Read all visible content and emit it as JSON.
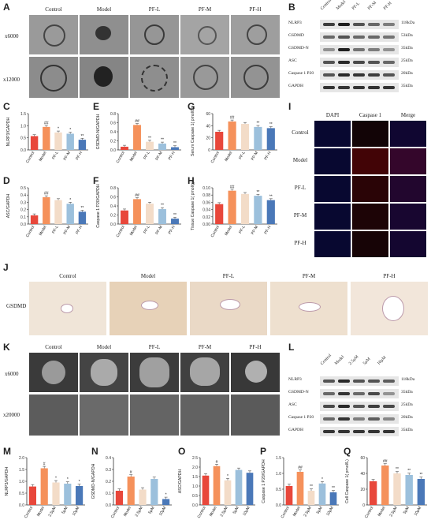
{
  "panels": {
    "A": "A",
    "B": "B",
    "C": "C",
    "D": "D",
    "E": "E",
    "F": "F",
    "G": "G",
    "H": "H",
    "I": "I",
    "J": "J",
    "K": "K",
    "L": "L",
    "M": "M",
    "N": "N",
    "O": "O",
    "P": "P",
    "Q": "Q"
  },
  "groups": [
    "Control",
    "Model",
    "PF-L",
    "PF-M",
    "PF-H"
  ],
  "cell_groups": [
    "Control",
    "Model",
    "2.5μM",
    "5μM",
    "10μM"
  ],
  "tem": {
    "mag1": "x6000",
    "mag2": "x12000"
  },
  "sem": {
    "mag1": "x6000",
    "mag2": "x20000"
  },
  "blot_b": {
    "rows": [
      {
        "name": "NLRP3",
        "kda": "118kDa"
      },
      {
        "name": "GSDMD",
        "kda": "53kDa"
      },
      {
        "name": "GSDMD-N",
        "kda": "35kDa"
      },
      {
        "name": "ASC",
        "kda": "25kDa"
      },
      {
        "name": "Caspase 1 P20",
        "kda": "20kDa"
      },
      {
        "name": "GAPDH",
        "kda": "35kDa"
      }
    ]
  },
  "blot_l": {
    "rows": [
      {
        "name": "NLRP3",
        "kda": "118kDa"
      },
      {
        "name": "GSDMD-N",
        "kda": "35kDa"
      },
      {
        "name": "ASC",
        "kda": "25kDa"
      },
      {
        "name": "Caspase 1 P20",
        "kda": "20kDa"
      },
      {
        "name": "GAPDH",
        "kda": "35kDa"
      }
    ]
  },
  "if_panel": {
    "cols": [
      "DAPI",
      "Caspase 1",
      "Merge"
    ],
    "rows": [
      "Control",
      "Model",
      "PF-L",
      "PF-M",
      "PF-H"
    ]
  },
  "ihc": {
    "row_label": "GSDMD"
  },
  "colors": {
    "c0": "#e8473b",
    "c1": "#f5915b",
    "c2": "#f3dcc8",
    "c3": "#9cc0dc",
    "c4": "#4a78b8"
  },
  "chart_data": [
    {
      "id": "C",
      "type": "bar",
      "ylabel": "NLRP3/GAPDH",
      "categories": [
        "Control",
        "Model",
        "PF-L",
        "PF-M",
        "PF-H"
      ],
      "values": [
        0.57,
        0.95,
        0.72,
        0.67,
        0.42
      ],
      "ylim": [
        0,
        1.5
      ],
      "ticks": [
        "0.0",
        "0.5",
        "1.0",
        "1.5"
      ],
      "sig": [
        "",
        "##",
        "*",
        "*",
        "**"
      ]
    },
    {
      "id": "D",
      "type": "bar",
      "ylabel": "ASC/GAPDH",
      "categories": [
        "Control",
        "Model",
        "PF-L",
        "PF-M",
        "PF-H"
      ],
      "values": [
        0.12,
        0.37,
        0.33,
        0.28,
        0.17
      ],
      "ylim": [
        0,
        0.5
      ],
      "ticks": [
        "0.0",
        "0.1",
        "0.2",
        "0.3",
        "0.4",
        "0.5"
      ],
      "sig": [
        "",
        "##",
        "",
        "*",
        "**"
      ]
    },
    {
      "id": "E",
      "type": "bar",
      "ylabel": "GSDMD-N/GAPDH",
      "categories": [
        "Control",
        "Model",
        "PF-L",
        "PF-M",
        "PF-H"
      ],
      "values": [
        0.07,
        0.55,
        0.18,
        0.14,
        0.06
      ],
      "ylim": [
        0,
        0.8
      ],
      "ticks": [
        "0.0",
        "0.2",
        "0.4",
        "0.6",
        "0.8"
      ],
      "sig": [
        "",
        "##",
        "**",
        "**",
        "**"
      ]
    },
    {
      "id": "F",
      "type": "bar",
      "ylabel": "Caspase 1 P20/GAPDH",
      "categories": [
        "Control",
        "Model",
        "PF-L",
        "PF-M",
        "PF-H"
      ],
      "values": [
        0.3,
        0.55,
        0.45,
        0.33,
        0.12
      ],
      "ylim": [
        0,
        0.8
      ],
      "ticks": [
        "0.0",
        "0.2",
        "0.4",
        "0.6",
        "0.8"
      ],
      "sig": [
        "",
        "##",
        "",
        "**",
        "**"
      ]
    },
    {
      "id": "G",
      "type": "bar",
      "ylabel": "Serum Caspase 1( pmol/L)",
      "categories": [
        "Control",
        "Model",
        "PF-L",
        "PF-M",
        "PF-H"
      ],
      "values": [
        30,
        47,
        43,
        38,
        36
      ],
      "ylim": [
        0,
        60
      ],
      "ticks": [
        "0",
        "20",
        "40",
        "60"
      ],
      "sig": [
        "",
        "##",
        "",
        "**",
        "**"
      ]
    },
    {
      "id": "H",
      "type": "bar",
      "ylabel": "Tissue Caspase 1( pmol/g)",
      "categories": [
        "Control",
        "Model",
        "PF-L",
        "PF-M",
        "PF-H"
      ],
      "values": [
        0.055,
        0.092,
        0.083,
        0.078,
        0.066
      ],
      "ylim": [
        0,
        0.1
      ],
      "ticks": [
        "0.00",
        "0.02",
        "0.04",
        "0.06",
        "0.08",
        "0.10"
      ],
      "sig": [
        "",
        "##",
        "",
        "**",
        "**"
      ]
    },
    {
      "id": "M",
      "type": "bar",
      "ylabel": "NLRP3/GAPDH",
      "categories": [
        "Control",
        "Model",
        "2.5μM",
        "5μM",
        "10μM"
      ],
      "values": [
        0.78,
        1.55,
        0.95,
        0.9,
        0.8
      ],
      "ylim": [
        0,
        2.0
      ],
      "ticks": [
        "0.0",
        "0.5",
        "1.0",
        "1.5",
        "2.0"
      ],
      "sig": [
        "",
        "#",
        "*",
        "*",
        "*"
      ]
    },
    {
      "id": "N",
      "type": "bar",
      "ylabel": "GSDMD-N/GAPDH",
      "categories": [
        "Control",
        "Model",
        "2.5μM",
        "5μM",
        "10μM"
      ],
      "values": [
        0.12,
        0.24,
        0.13,
        0.22,
        0.05
      ],
      "ylim": [
        0,
        0.4
      ],
      "ticks": [
        "0.0",
        "0.1",
        "0.2",
        "0.3",
        "0.4"
      ],
      "sig": [
        "",
        "#",
        "",
        "",
        "*"
      ]
    },
    {
      "id": "O",
      "type": "bar",
      "ylabel": "ASC/GAPDH",
      "categories": [
        "Control",
        "Model",
        "2.5μM",
        "5μM",
        "10μM"
      ],
      "values": [
        1.55,
        2.05,
        1.3,
        1.85,
        1.7
      ],
      "ylim": [
        0,
        2.5
      ],
      "ticks": [
        "0.0",
        "0.5",
        "1.0",
        "1.5",
        "2.0",
        "2.5"
      ],
      "sig": [
        "",
        "#",
        "*",
        "",
        ""
      ]
    },
    {
      "id": "P",
      "type": "bar",
      "ylabel": "Caspase 1 P20/GAPDH",
      "categories": [
        "Control",
        "Model",
        "2.5μM",
        "5μM",
        "10μM"
      ],
      "values": [
        0.6,
        1.05,
        0.45,
        0.68,
        0.4
      ],
      "ylim": [
        0,
        1.5
      ],
      "ticks": [
        "0.0",
        "0.5",
        "1.0",
        "1.5"
      ],
      "sig": [
        "",
        "##",
        "**",
        "*",
        "**"
      ]
    },
    {
      "id": "Q",
      "type": "bar",
      "ylabel": "Cell Caspase 1( pmol/L)",
      "categories": [
        "Control",
        "Model",
        "2.5μM",
        "5μM",
        "10μM"
      ],
      "values": [
        30,
        50,
        40,
        38,
        33
      ],
      "ylim": [
        0,
        60
      ],
      "ticks": [
        "0",
        "20",
        "40",
        "60"
      ],
      "sig": [
        "",
        "##",
        "**",
        "**",
        "**"
      ]
    }
  ]
}
